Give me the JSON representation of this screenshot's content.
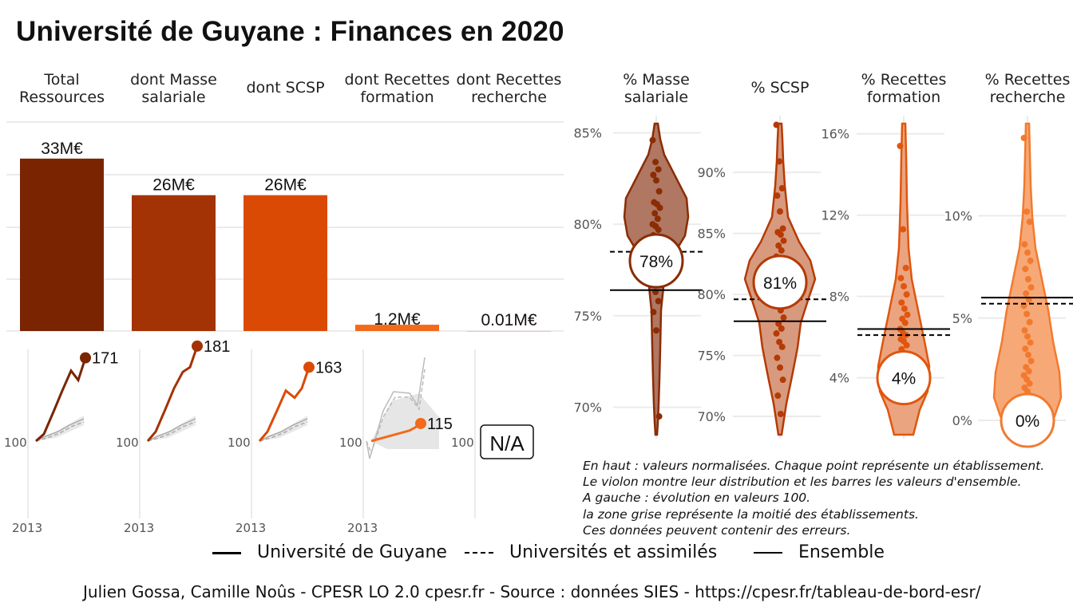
{
  "title": "Université de Guyane  :  Finances en 2020",
  "chart_data": [
    {
      "type": "bar",
      "categories": [
        "Total Ressources",
        "dont Masse salariale",
        "dont SCSP",
        "dont Recettes formation",
        "dont Recettes recherche"
      ],
      "category_lines": [
        [
          "Total",
          "Ressources"
        ],
        [
          "dont Masse",
          "salariale"
        ],
        [
          "dont SCSP"
        ],
        [
          "dont Recettes",
          "formation"
        ],
        [
          "dont Recettes",
          "recherche"
        ]
      ],
      "values_meur": [
        33,
        26,
        26,
        1.2,
        0.01
      ],
      "value_labels": [
        "33M€",
        "26M€",
        "26M€",
        "1.2M€",
        "0.01M€"
      ],
      "colors": [
        "#7a2402",
        "#a33204",
        "#db4a05",
        "#f26a1a",
        "#f5965a"
      ]
    },
    {
      "type": "line",
      "subtitle": "évolution en valeurs 100",
      "x_start_label": "2013",
      "baseline_label": "100",
      "series": [
        {
          "category": "Total Ressources",
          "end_label": "171",
          "values": [
            100,
            106,
            125,
            143,
            160,
            152,
            171
          ]
        },
        {
          "category": "dont Masse salariale",
          "end_label": "181",
          "values": [
            100,
            108,
            127,
            145,
            159,
            163,
            181
          ]
        },
        {
          "category": "dont SCSP",
          "end_label": "163",
          "values": [
            100,
            108,
            126,
            143,
            137,
            145,
            163
          ]
        },
        {
          "category": "dont Recettes formation",
          "end_label": "115",
          "values": [
            100,
            103,
            106,
            109,
            112,
            115
          ]
        },
        {
          "category": "dont Recettes recherche",
          "end_label": "N/A",
          "values": []
        }
      ]
    },
    {
      "type": "scatter",
      "subtitle": "violin",
      "panels": [
        {
          "label_lines": [
            "% Masse",
            "salariale"
          ],
          "ticks": [
            "85%",
            "80%",
            "75%",
            "70%"
          ],
          "tick_values": [
            85,
            80,
            75,
            70
          ],
          "ylim": [
            68.5,
            85.5
          ],
          "value": 78,
          "value_label": "78%",
          "ensemble": 76.4,
          "universites": 78.5,
          "color": "#8a2c04"
        },
        {
          "label_lines": [
            "% SCSP"
          ],
          "ticks": [
            "90%",
            "85%",
            "80%",
            "75%",
            "70%"
          ],
          "tick_values": [
            90,
            85,
            80,
            75,
            70
          ],
          "ylim": [
            68.5,
            94
          ],
          "value": 81,
          "value_label": "81%",
          "ensemble": 77.8,
          "universites": 79.6,
          "color": "#b53a05"
        },
        {
          "label_lines": [
            "% Recettes",
            "formation"
          ],
          "ticks": [
            "16%",
            "12%",
            "8%",
            "4%"
          ],
          "tick_values": [
            16,
            12,
            8,
            4
          ],
          "ylim": [
            1.2,
            16.5
          ],
          "value": 4,
          "value_label": "4%",
          "ensemble": 6.4,
          "universites": 6.1,
          "color": "#e0560e"
        },
        {
          "label_lines": [
            "% Recettes",
            "recherche"
          ],
          "ticks": [
            "10%",
            "5%",
            "0%"
          ],
          "tick_values": [
            10,
            5,
            0
          ],
          "ylim": [
            -0.7,
            14.5
          ],
          "value": 0,
          "value_label": "0%",
          "ensemble": 6.0,
          "universites": 5.7,
          "color": "#f27a2e"
        }
      ]
    }
  ],
  "notes": [
    "En haut : valeurs normalisées. Chaque point représente un établissement.",
    "Le violon montre leur distribution et les barres les valeurs d'ensemble.",
    "A gauche : évolution en valeurs 100.",
    "la zone grise représente la moitié des établissements.",
    "Ces données peuvent contenir des erreurs."
  ],
  "legend": {
    "guyane": "Université de Guyane",
    "universites": "Universités et assimilés",
    "ensemble": "Ensemble"
  },
  "caption": "Julien Gossa, Camille Noûs - CPESR LO 2.0 cpesr.fr - Source : données SIES - https://cpesr.fr/tableau-de-bord-esr/"
}
